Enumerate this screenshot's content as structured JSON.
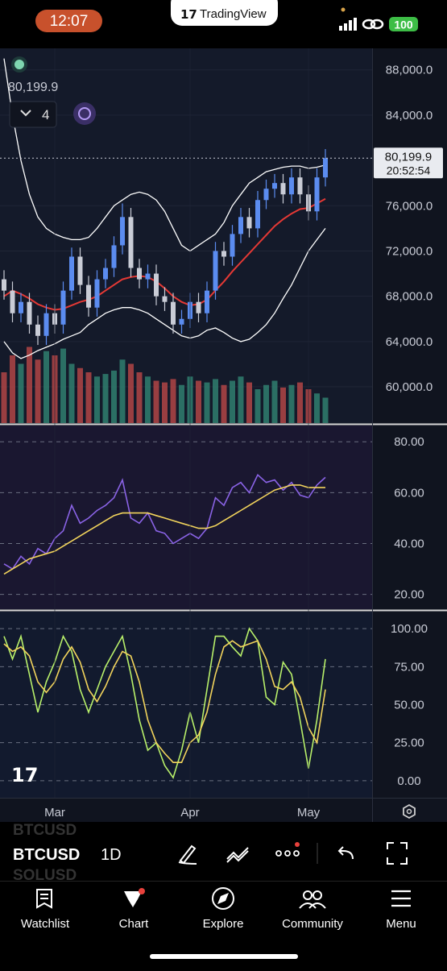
{
  "status_bar": {
    "time": "12:07",
    "app": "TradingView",
    "battery": "100"
  },
  "legend": {
    "value": "80,199.9",
    "indicator_count": "4"
  },
  "chart_data": [
    {
      "type": "candlestick",
      "price_label": "80,199.9",
      "countdown": "20:52:54",
      "categories": [
        null,
        null,
        null,
        null,
        null,
        null,
        "Mar",
        null,
        null,
        null,
        null,
        null,
        null,
        null,
        null,
        null,
        null,
        null,
        null,
        null,
        null,
        null,
        "Apr",
        null,
        null,
        null,
        null,
        null,
        null,
        null,
        null,
        null,
        null,
        null,
        null,
        null,
        "May",
        null,
        null
      ],
      "open": [
        69500,
        68500,
        66500,
        67500,
        65500,
        64500,
        66500,
        65500,
        68500,
        71500,
        69000,
        67000,
        69500,
        70500,
        72500,
        75000,
        70500,
        69500,
        70000,
        68000,
        67500,
        65500,
        66000,
        67500,
        66500,
        68500,
        72000,
        71500,
        73500,
        75000,
        74000,
        76500,
        77500,
        78000,
        77000,
        78500,
        77000,
        75500,
        78500
      ],
      "high": [
        70300,
        69300,
        68300,
        68300,
        66300,
        67300,
        67300,
        69300,
        72300,
        72300,
        69800,
        70300,
        71300,
        73300,
        76200,
        75800,
        71300,
        70800,
        70800,
        68800,
        68300,
        66800,
        68300,
        68300,
        69300,
        72800,
        72800,
        74300,
        75800,
        75800,
        77300,
        78300,
        78800,
        78800,
        79300,
        79300,
        77800,
        79300,
        81000
      ],
      "low": [
        67700,
        65700,
        65700,
        64700,
        63700,
        63700,
        64700,
        64700,
        67700,
        68200,
        66200,
        66200,
        68700,
        69700,
        71700,
        69700,
        68700,
        68700,
        67200,
        66700,
        64700,
        64700,
        65200,
        65700,
        65700,
        67700,
        70700,
        70700,
        72700,
        73200,
        73200,
        75700,
        76700,
        76200,
        76200,
        76200,
        74700,
        74700,
        77700
      ],
      "close": [
        68500,
        66500,
        67500,
        65500,
        64500,
        66500,
        65500,
        68500,
        71500,
        69000,
        67000,
        69500,
        70500,
        72500,
        75000,
        70500,
        69500,
        70000,
        68000,
        67500,
        65500,
        66000,
        67500,
        66500,
        68500,
        72000,
        71500,
        73500,
        75000,
        74000,
        76500,
        77500,
        78000,
        77000,
        78500,
        77000,
        75500,
        78500,
        80199.9
      ],
      "up_color": "#5b8cf0",
      "down_color": "#c9ccd6",
      "volume": [
        60,
        80,
        70,
        90,
        75,
        85,
        80,
        88,
        70,
        65,
        60,
        55,
        58,
        62,
        75,
        70,
        60,
        55,
        50,
        48,
        52,
        45,
        55,
        50,
        48,
        52,
        45,
        50,
        55,
        48,
        40,
        45,
        50,
        42,
        45,
        48,
        40,
        35,
        30
      ],
      "volume_lim": [
        0,
        100
      ],
      "volume_up_color": "#2f7f6f",
      "volume_down_color": "#b04545",
      "overlays": [
        {
          "color": "#ffffff",
          "values": [
            89000,
            84000,
            80000,
            77000,
            75000,
            74000,
            73500,
            73200,
            73000,
            73000,
            73200,
            74000,
            75000,
            76000,
            76500,
            77000,
            77200,
            77000,
            76500,
            75500,
            74000,
            72500,
            72000,
            72500,
            73000,
            73500,
            74500,
            76000,
            77000,
            78000,
            78500,
            79000,
            79200,
            79400,
            79500,
            79500,
            79300,
            79400,
            79600
          ]
        },
        {
          "color": "#ffffff",
          "values": [
            64000,
            63000,
            62500,
            62800,
            63200,
            63500,
            63800,
            64200,
            64500,
            64800,
            65500,
            66000,
            66500,
            66800,
            67000,
            67000,
            66800,
            66500,
            66000,
            65500,
            65000,
            64500,
            64300,
            64500,
            65000,
            65200,
            64800,
            64300,
            64000,
            64200,
            64800,
            65500,
            66500,
            67800,
            69000,
            70500,
            72000,
            73000,
            74000
          ]
        },
        {
          "color": "#e53935",
          "values": [
            68000,
            68500,
            68200,
            67800,
            67300,
            67000,
            66800,
            66900,
            67200,
            67500,
            67700,
            68000,
            68500,
            69000,
            69500,
            69700,
            69800,
            69700,
            69300,
            68700,
            68000,
            67500,
            67200,
            67300,
            67700,
            68500,
            69300,
            70200,
            71000,
            71800,
            72600,
            73400,
            74200,
            74800,
            75300,
            75700,
            75800,
            76200,
            76600
          ]
        }
      ],
      "ylim": [
        56800,
        89900
      ],
      "yticks": [
        {
          "value": 60000,
          "label": "60,000.0"
        },
        {
          "value": 64000,
          "label": "64,000.0"
        },
        {
          "value": 68000,
          "label": "68,000.0"
        },
        {
          "value": 72000,
          "label": "72,000.0"
        },
        {
          "value": 76000,
          "label": "76,000.0"
        },
        {
          "value": 84000,
          "label": "84,000.0"
        },
        {
          "value": 88000,
          "label": "88,000.0"
        }
      ]
    },
    {
      "type": "line",
      "ylim": [
        14.2,
        86.4
      ],
      "yticks": [
        {
          "value": 20,
          "label": "20.00"
        },
        {
          "value": 40,
          "label": "40.00"
        },
        {
          "value": 60,
          "label": "60.00"
        },
        {
          "value": 80,
          "label": "80.00"
        }
      ],
      "series": [
        {
          "color": "#8a63e6",
          "values": [
            32,
            30,
            35,
            32,
            38,
            36,
            42,
            45,
            55,
            48,
            50,
            53,
            55,
            58,
            65,
            50,
            48,
            52,
            45,
            44,
            40,
            42,
            44,
            42,
            46,
            58,
            55,
            62,
            64,
            60,
            67,
            64,
            65,
            61,
            64,
            59,
            58,
            63,
            66
          ]
        },
        {
          "color": "#f2d45c",
          "values": [
            28,
            30,
            32,
            34,
            35,
            36,
            37,
            39,
            41,
            43,
            45,
            47,
            49,
            51,
            52,
            52,
            52,
            52,
            51,
            50,
            49,
            48,
            47,
            46,
            46,
            47,
            49,
            51,
            53,
            55,
            57,
            59,
            61,
            62,
            63,
            63,
            62,
            62,
            62
          ]
        }
      ]
    },
    {
      "type": "line",
      "ylim": [
        -11.2,
        111.2
      ],
      "yticks": [
        {
          "value": 0,
          "label": "0.00"
        },
        {
          "value": 25,
          "label": "25.00"
        },
        {
          "value": 50,
          "label": "50.00"
        },
        {
          "value": 75,
          "label": "75.00"
        },
        {
          "value": 100,
          "label": "100.00"
        }
      ],
      "series": [
        {
          "color": "#b8f06a",
          "values": [
            95,
            80,
            95,
            70,
            45,
            65,
            78,
            95,
            85,
            60,
            45,
            60,
            75,
            85,
            95,
            70,
            40,
            20,
            25,
            10,
            2,
            20,
            45,
            25,
            60,
            95,
            95,
            88,
            82,
            100,
            92,
            55,
            50,
            78,
            70,
            40,
            8,
            40,
            80
          ]
        },
        {
          "color": "#f2d45c",
          "values": [
            90,
            85,
            88,
            82,
            65,
            58,
            65,
            80,
            88,
            78,
            60,
            52,
            62,
            75,
            85,
            82,
            65,
            40,
            25,
            18,
            12,
            12,
            25,
            30,
            45,
            70,
            88,
            92,
            88,
            90,
            92,
            80,
            62,
            60,
            65,
            55,
            35,
            25,
            60
          ]
        }
      ]
    }
  ],
  "toolbar": {
    "symbol": "BTCUSD",
    "interval": "1D",
    "prev_symbol": "BTCUSD",
    "next_symbol": "SOLUSD"
  },
  "tabs": [
    "Watchlist",
    "Chart",
    "Explore",
    "Community",
    "Menu"
  ]
}
